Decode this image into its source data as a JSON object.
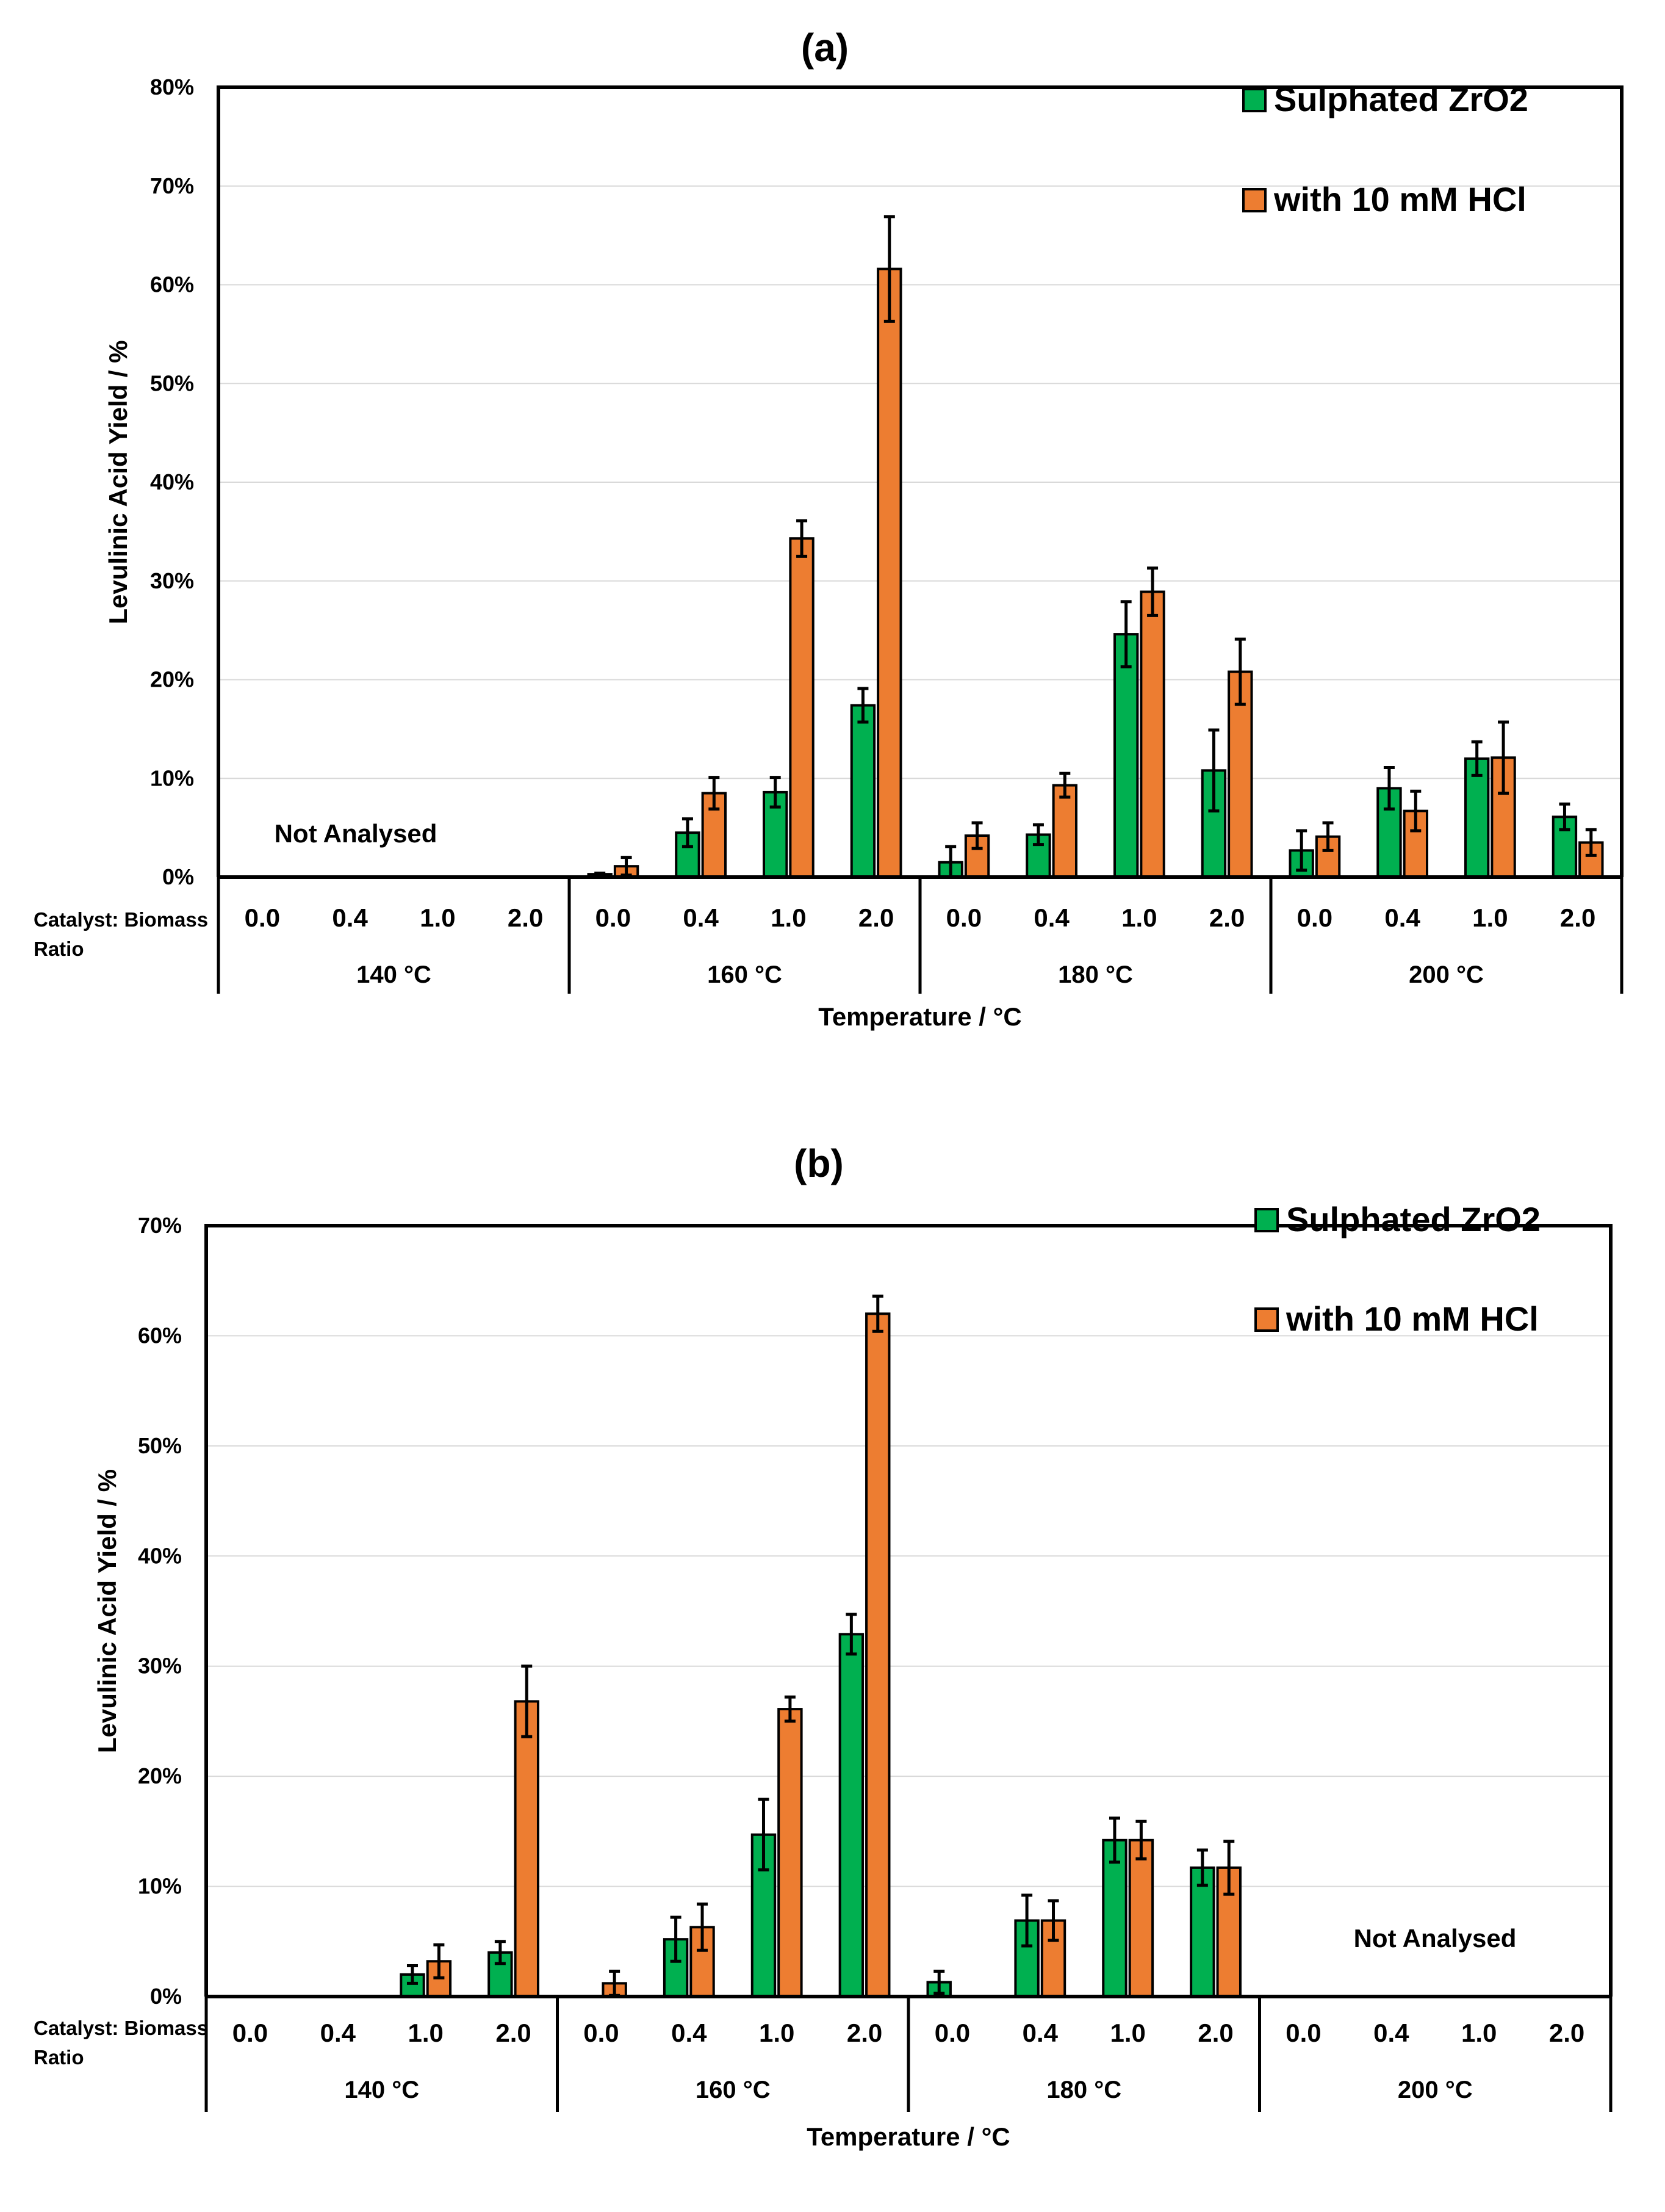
{
  "chart_data": [
    {
      "type": "bar",
      "title": "(a)",
      "ylabel": "Levulinic Acid Yield / %",
      "xlabel": "Temperature / °C",
      "category_axis_label": "Catalyst: Biomass Ratio",
      "ylim": [
        0,
        80
      ],
      "yticks": [
        "0%",
        "10%",
        "20%",
        "30%",
        "40%",
        "50%",
        "60%",
        "70%",
        "80%"
      ],
      "groups": [
        {
          "label": "140 °C",
          "ratios": [
            "0.0",
            "0.4",
            "1.0",
            "2.0"
          ]
        },
        {
          "label": "160 °C",
          "ratios": [
            "0.0",
            "0.4",
            "1.0",
            "2.0"
          ]
        },
        {
          "label": "180 °C",
          "ratios": [
            "0.0",
            "0.4",
            "1.0",
            "2.0"
          ]
        },
        {
          "label": "200 °C",
          "ratios": [
            "0.0",
            "0.4",
            "1.0",
            "2.0"
          ]
        }
      ],
      "series": [
        {
          "name": "Sulphated ZrO2",
          "color": "#00b050",
          "values": [
            null,
            null,
            null,
            null,
            0.3,
            4.5,
            8.6,
            17.4,
            1.5,
            4.3,
            24.6,
            10.8,
            2.7,
            9.0,
            12.0,
            6.1
          ],
          "errors": [
            null,
            null,
            null,
            null,
            0.1,
            1.4,
            1.5,
            1.7,
            1.6,
            1.0,
            3.3,
            4.1,
            2.0,
            2.1,
            1.7,
            1.3
          ]
        },
        {
          "name": "with 10 mM HCl",
          "color": "#ed7d31",
          "values": [
            null,
            null,
            null,
            null,
            1.1,
            8.5,
            34.3,
            61.6,
            4.2,
            9.3,
            28.9,
            20.8,
            4.1,
            6.7,
            12.1,
            3.5
          ],
          "errors": [
            null,
            null,
            null,
            null,
            0.9,
            1.6,
            1.8,
            5.3,
            1.3,
            1.2,
            2.4,
            3.3,
            1.4,
            2.0,
            3.6,
            1.3
          ]
        }
      ],
      "annotations": [
        "Not Analysed"
      ]
    },
    {
      "type": "bar",
      "title": "(b)",
      "ylabel": "Levulinic Acid Yield / %",
      "xlabel": "Temperature / °C",
      "category_axis_label": "Catalyst: Biomass Ratio",
      "ylim": [
        0,
        70
      ],
      "yticks": [
        "0%",
        "10%",
        "20%",
        "30%",
        "40%",
        "50%",
        "60%",
        "70%"
      ],
      "groups": [
        {
          "label": "140 °C",
          "ratios": [
            "0.0",
            "0.4",
            "1.0",
            "2.0"
          ]
        },
        {
          "label": "160 °C",
          "ratios": [
            "0.0",
            "0.4",
            "1.0",
            "2.0"
          ]
        },
        {
          "label": "180 °C",
          "ratios": [
            "0.0",
            "0.4",
            "1.0",
            "2.0"
          ]
        },
        {
          "label": "200 °C",
          "ratios": [
            "0.0",
            "0.4",
            "1.0",
            "2.0"
          ]
        }
      ],
      "series": [
        {
          "name": "Sulphated ZrO2",
          "color": "#00b050",
          "values": [
            null,
            null,
            2.0,
            4.0,
            null,
            5.2,
            14.7,
            32.9,
            1.3,
            6.9,
            14.2,
            11.7,
            null,
            null,
            null,
            null
          ],
          "errors": [
            null,
            null,
            0.8,
            1.0,
            null,
            2.0,
            3.2,
            1.8,
            1.0,
            2.3,
            2.0,
            1.6,
            null,
            null,
            null,
            null
          ]
        },
        {
          "name": "with 10 mM HCl",
          "color": "#ed7d31",
          "values": [
            null,
            null,
            3.2,
            26.8,
            1.2,
            6.3,
            26.1,
            62.0,
            null,
            6.9,
            14.2,
            11.7,
            null,
            null,
            null,
            null
          ],
          "errors": [
            null,
            null,
            1.5,
            3.2,
            1.1,
            2.1,
            1.1,
            1.6,
            null,
            1.8,
            1.7,
            2.4,
            null,
            null,
            null,
            null
          ]
        }
      ],
      "annotations": [
        "Not Analysed"
      ]
    }
  ]
}
